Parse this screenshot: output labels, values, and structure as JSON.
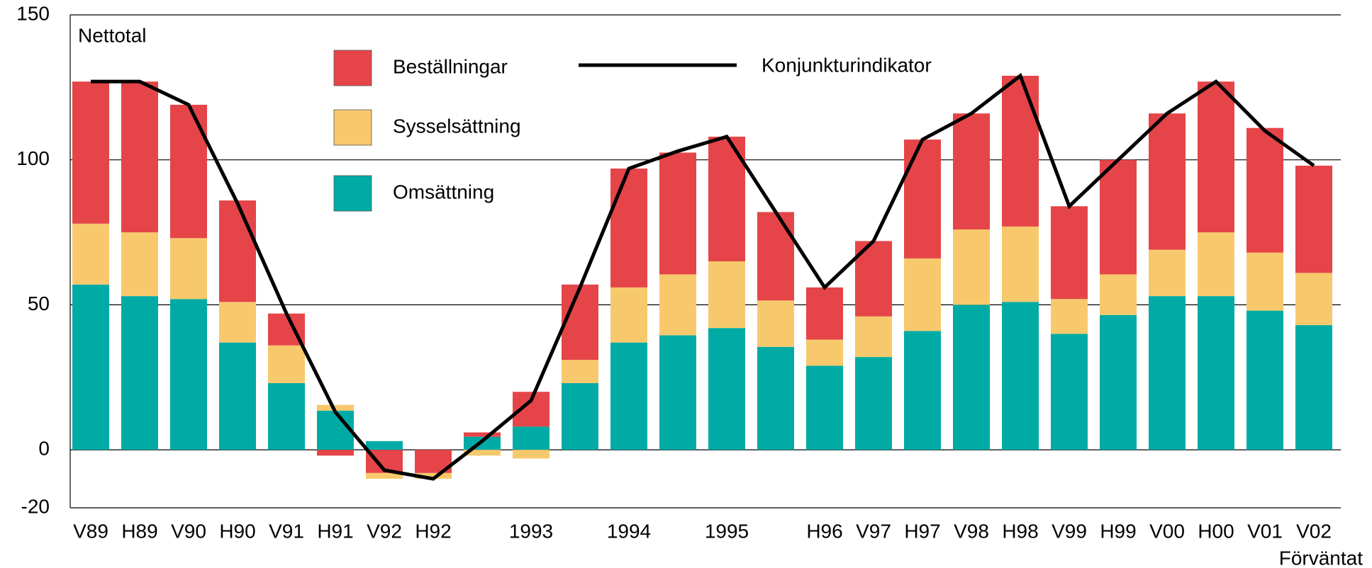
{
  "chart_data": {
    "type": "bar",
    "stacked": true,
    "y_label": "Nettotal",
    "annotation": "Förväntat",
    "categories": [
      "V89",
      "H89",
      "V90",
      "H90",
      "V91",
      "H91",
      "V92",
      "H92",
      null,
      "1993",
      null,
      "1994",
      null,
      "1995",
      null,
      "H96",
      "V97",
      "H97",
      "V98",
      "H98",
      "V99",
      "H99",
      "V00",
      "H00",
      "V01",
      "V02"
    ],
    "series": [
      {
        "name": "Omsättning",
        "color": "#00aba5",
        "values": [
          57,
          53,
          52,
          37,
          23,
          13.5,
          3,
          0,
          4.5,
          8,
          23,
          37,
          39.5,
          42,
          35.5,
          29,
          32,
          41,
          50,
          51,
          40,
          46.5,
          53,
          53,
          48,
          43
        ]
      },
      {
        "name": "Sysselsättning",
        "color": "#f8c96c",
        "values": [
          21,
          22,
          21,
          14,
          13,
          2,
          -2,
          -2,
          -2,
          -3,
          8,
          19,
          21,
          23,
          16,
          9,
          14,
          25,
          26,
          26,
          12,
          14,
          16,
          22,
          20,
          18
        ]
      },
      {
        "name": "Beställningar",
        "color": "#e54548",
        "values": [
          49,
          52,
          46,
          35,
          11,
          -2,
          -8,
          -8,
          1.5,
          12,
          26,
          41,
          42,
          43,
          30.5,
          18,
          26,
          41,
          40,
          52,
          32,
          39.5,
          47,
          52,
          43,
          37
        ]
      },
      {
        "name": "Konjunkturindikator",
        "type": "line",
        "color": "#000000",
        "values": [
          127,
          127,
          119,
          85,
          47,
          13,
          -7,
          -10,
          3,
          17,
          56,
          97,
          103,
          108,
          82,
          56,
          72,
          107,
          116,
          129,
          84,
          100,
          116,
          127,
          110,
          98
        ]
      }
    ],
    "ylim": [
      -20,
      150
    ],
    "yticks": [
      -20,
      0,
      50,
      100,
      150
    ],
    "grid": true
  }
}
